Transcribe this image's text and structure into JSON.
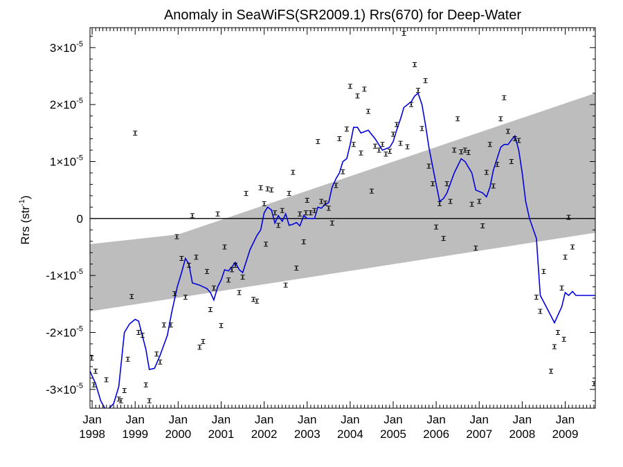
{
  "chart_data": {
    "type": "scatter",
    "title": "Anomaly in SeaWiFS(SR2009.1) Rrs(670) for Deep-Water",
    "ylabel": "Rrs (str",
    "ylabel_sup": "-1",
    "ylabel_tail": ")",
    "y_scale_exponent": -5,
    "ylim": [
      -3.33,
      3.35
    ],
    "xlim": [
      1997.95,
      2009.7
    ],
    "y_ticks": [
      {
        "value": 3,
        "mantissa": "3",
        "base": "×10",
        "exp": "-5"
      },
      {
        "value": 2,
        "mantissa": "2",
        "base": "×10",
        "exp": "-5"
      },
      {
        "value": 1,
        "mantissa": "1",
        "base": "×10",
        "exp": "-5"
      },
      {
        "value": 0,
        "mantissa": "0",
        "base": "",
        "exp": ""
      },
      {
        "value": -1,
        "mantissa": "-1",
        "base": "×10",
        "exp": "-5"
      },
      {
        "value": -2,
        "mantissa": "-2",
        "base": "×10",
        "exp": "-5"
      },
      {
        "value": -3,
        "mantissa": "-3",
        "base": "×10",
        "exp": "-5"
      }
    ],
    "x_ticks": [
      {
        "value": 1998,
        "month": "Jan",
        "year": "1998"
      },
      {
        "value": 1999,
        "month": "Jan",
        "year": "1999"
      },
      {
        "value": 2000,
        "month": "Jan",
        "year": "2000"
      },
      {
        "value": 2001,
        "month": "Jan",
        "year": "2001"
      },
      {
        "value": 2002,
        "month": "Jan",
        "year": "2002"
      },
      {
        "value": 2003,
        "month": "Jan",
        "year": "2003"
      },
      {
        "value": 2004,
        "month": "Jan",
        "year": "2004"
      },
      {
        "value": 2005,
        "month": "Jan",
        "year": "2005"
      },
      {
        "value": 2006,
        "month": "Jan",
        "year": "2006"
      },
      {
        "value": 2007,
        "month": "Jan",
        "year": "2007"
      },
      {
        "value": 2008,
        "month": "Jan",
        "year": "2008"
      },
      {
        "value": 2009,
        "month": "Jan",
        "year": "2009"
      }
    ],
    "trend_band": {
      "lower": [
        [
          1997.95,
          -1.63
        ],
        [
          2009.7,
          -0.25
        ]
      ],
      "upper": [
        [
          1997.95,
          -0.45
        ],
        [
          2000.0,
          -0.28
        ],
        [
          2009.7,
          2.2
        ]
      ]
    },
    "colors": {
      "smooth": "#0000dd",
      "band": "#bdbdbd",
      "points": "#000000"
    },
    "smooth_series": [
      [
        1997.95,
        -2.68
      ],
      [
        1998.08,
        -2.9
      ],
      [
        1998.2,
        -3.2
      ],
      [
        1998.33,
        -3.38
      ],
      [
        1998.5,
        -3.25
      ],
      [
        1998.62,
        -2.95
      ],
      [
        1998.75,
        -2.0
      ],
      [
        1998.87,
        -1.85
      ],
      [
        1999.0,
        -1.77
      ],
      [
        1999.08,
        -1.8
      ],
      [
        1999.25,
        -2.3
      ],
      [
        1999.33,
        -2.65
      ],
      [
        1999.45,
        -2.63
      ],
      [
        1999.58,
        -2.4
      ],
      [
        1999.75,
        -2.05
      ],
      [
        1999.85,
        -1.65
      ],
      [
        1999.98,
        -1.2
      ],
      [
        2000.08,
        -0.95
      ],
      [
        2000.17,
        -0.7
      ],
      [
        2000.25,
        -0.8
      ],
      [
        2000.33,
        -1.13
      ],
      [
        2000.5,
        -1.17
      ],
      [
        2000.67,
        -1.23
      ],
      [
        2000.75,
        -1.3
      ],
      [
        2000.83,
        -1.43
      ],
      [
        2000.92,
        -1.2
      ],
      [
        2001.0,
        -1.08
      ],
      [
        2001.08,
        -0.9
      ],
      [
        2001.17,
        -0.92
      ],
      [
        2001.25,
        -0.85
      ],
      [
        2001.33,
        -0.77
      ],
      [
        2001.42,
        -0.9
      ],
      [
        2001.5,
        -0.95
      ],
      [
        2001.67,
        -0.55
      ],
      [
        2001.83,
        -0.3
      ],
      [
        2001.92,
        -0.2
      ],
      [
        2002.0,
        0.1
      ],
      [
        2002.08,
        0.2
      ],
      [
        2002.17,
        0.15
      ],
      [
        2002.25,
        -0.08
      ],
      [
        2002.33,
        0.05
      ],
      [
        2002.42,
        -0.05
      ],
      [
        2002.5,
        0.08
      ],
      [
        2002.58,
        -0.12
      ],
      [
        2002.67,
        -0.1
      ],
      [
        2002.75,
        -0.07
      ],
      [
        2002.83,
        -0.13
      ],
      [
        2002.92,
        0.05
      ],
      [
        2003.0,
        0.0
      ],
      [
        2003.17,
        0.0
      ],
      [
        2003.25,
        0.2
      ],
      [
        2003.33,
        0.18
      ],
      [
        2003.42,
        0.25
      ],
      [
        2003.5,
        0.28
      ],
      [
        2003.58,
        0.55
      ],
      [
        2003.67,
        0.7
      ],
      [
        2003.75,
        0.8
      ],
      [
        2003.83,
        1.0
      ],
      [
        2003.92,
        1.05
      ],
      [
        2004.0,
        1.3
      ],
      [
        2004.08,
        1.6
      ],
      [
        2004.17,
        1.6
      ],
      [
        2004.25,
        1.5
      ],
      [
        2004.42,
        1.55
      ],
      [
        2004.58,
        1.4
      ],
      [
        2004.75,
        1.2
      ],
      [
        2004.92,
        1.25
      ],
      [
        2005.0,
        1.35
      ],
      [
        2005.08,
        1.55
      ],
      [
        2005.17,
        1.75
      ],
      [
        2005.25,
        1.95
      ],
      [
        2005.42,
        2.05
      ],
      [
        2005.5,
        2.15
      ],
      [
        2005.58,
        2.2
      ],
      [
        2005.67,
        2.0
      ],
      [
        2005.75,
        1.65
      ],
      [
        2005.83,
        1.25
      ],
      [
        2005.92,
        0.9
      ],
      [
        2006.0,
        0.6
      ],
      [
        2006.08,
        0.3
      ],
      [
        2006.17,
        0.35
      ],
      [
        2006.25,
        0.45
      ],
      [
        2006.42,
        0.8
      ],
      [
        2006.58,
        1.05
      ],
      [
        2006.67,
        1.0
      ],
      [
        2006.75,
        0.9
      ],
      [
        2006.83,
        0.8
      ],
      [
        2006.92,
        0.5
      ],
      [
        2007.08,
        0.45
      ],
      [
        2007.17,
        0.38
      ],
      [
        2007.25,
        0.55
      ],
      [
        2007.33,
        0.85
      ],
      [
        2007.5,
        1.25
      ],
      [
        2007.58,
        1.3
      ],
      [
        2007.67,
        1.3
      ],
      [
        2007.75,
        1.38
      ],
      [
        2007.83,
        1.45
      ],
      [
        2007.92,
        1.2
      ],
      [
        2008.0,
        0.8
      ],
      [
        2008.08,
        0.3
      ],
      [
        2008.17,
        0.0
      ],
      [
        2008.33,
        -0.35
      ],
      [
        2008.42,
        -1.35
      ],
      [
        2008.58,
        -1.58
      ],
      [
        2008.75,
        -1.83
      ],
      [
        2008.92,
        -1.55
      ],
      [
        2009.0,
        -1.3
      ],
      [
        2009.08,
        -1.35
      ],
      [
        2009.17,
        -1.28
      ],
      [
        2009.25,
        -1.35
      ],
      [
        2009.5,
        -1.35
      ],
      [
        2009.7,
        -1.35
      ]
    ],
    "points": [
      [
        1997.99,
        -2.45
      ],
      [
        1998.04,
        -2.92
      ],
      [
        1998.08,
        -2.68
      ],
      [
        1998.33,
        -2.83
      ],
      [
        1998.62,
        -3.17
      ],
      [
        1998.67,
        -3.2
      ],
      [
        1998.75,
        -3.02
      ],
      [
        1998.83,
        -2.47
      ],
      [
        1998.92,
        -1.37
      ],
      [
        1999.0,
        1.5
      ],
      [
        1999.08,
        -2.0
      ],
      [
        1999.17,
        -2.05
      ],
      [
        1999.25,
        -2.92
      ],
      [
        1999.33,
        -3.2
      ],
      [
        1999.5,
        -2.38
      ],
      [
        1999.58,
        -2.52
      ],
      [
        1999.67,
        -1.87
      ],
      [
        1999.83,
        -1.87
      ],
      [
        1999.92,
        -1.32
      ],
      [
        1999.97,
        -0.32
      ],
      [
        2000.08,
        -0.7
      ],
      [
        2000.17,
        -1.38
      ],
      [
        2000.25,
        -0.82
      ],
      [
        2000.33,
        0.05
      ],
      [
        2000.42,
        -0.68
      ],
      [
        2000.5,
        -2.26
      ],
      [
        2000.58,
        -2.16
      ],
      [
        2000.67,
        -0.93
      ],
      [
        2000.75,
        -1.6
      ],
      [
        2000.83,
        -1.22
      ],
      [
        2000.92,
        0.08
      ],
      [
        2001.0,
        -1.88
      ],
      [
        2001.08,
        -0.5
      ],
      [
        2001.17,
        -1.08
      ],
      [
        2001.25,
        -0.9
      ],
      [
        2001.33,
        -0.82
      ],
      [
        2001.42,
        -1.3
      ],
      [
        2001.5,
        -1.03
      ],
      [
        2001.58,
        0.44
      ],
      [
        2001.75,
        -1.42
      ],
      [
        2001.83,
        -1.45
      ],
      [
        2001.92,
        0.54
      ],
      [
        2002.0,
        0.26
      ],
      [
        2002.04,
        -0.45
      ],
      [
        2002.08,
        0.52
      ],
      [
        2002.17,
        0.5
      ],
      [
        2002.25,
        0.1
      ],
      [
        2002.33,
        -0.12
      ],
      [
        2002.42,
        0.14
      ],
      [
        2002.5,
        -1.17
      ],
      [
        2002.58,
        0.44
      ],
      [
        2002.67,
        0.81
      ],
      [
        2002.75,
        -0.87
      ],
      [
        2002.83,
        0.08
      ],
      [
        2002.92,
        -0.41
      ],
      [
        2002.97,
        0.1
      ],
      [
        2003.0,
        0.32
      ],
      [
        2003.08,
        0.1
      ],
      [
        2003.17,
        0.14
      ],
      [
        2003.25,
        1.35
      ],
      [
        2003.33,
        0.3
      ],
      [
        2003.42,
        0.27
      ],
      [
        2003.5,
        0.18
      ],
      [
        2003.58,
        -0.08
      ],
      [
        2003.67,
        0.58
      ],
      [
        2003.75,
        1.4
      ],
      [
        2003.83,
        0.82
      ],
      [
        2003.92,
        1.57
      ],
      [
        2004.0,
        2.32
      ],
      [
        2004.08,
        1.3
      ],
      [
        2004.17,
        2.15
      ],
      [
        2004.25,
        1.15
      ],
      [
        2004.33,
        2.27
      ],
      [
        2004.42,
        1.88
      ],
      [
        2004.5,
        0.48
      ],
      [
        2004.58,
        1.27
      ],
      [
        2004.67,
        1.2
      ],
      [
        2004.75,
        1.3
      ],
      [
        2004.83,
        1.13
      ],
      [
        2004.92,
        1.18
      ],
      [
        2005.0,
        1.48
      ],
      [
        2005.08,
        1.65
      ],
      [
        2005.17,
        1.32
      ],
      [
        2005.25,
        3.25
      ],
      [
        2005.33,
        1.26
      ],
      [
        2005.42,
        2.0
      ],
      [
        2005.5,
        2.7
      ],
      [
        2005.58,
        2.25
      ],
      [
        2005.67,
        1.58
      ],
      [
        2005.75,
        2.42
      ],
      [
        2005.83,
        0.92
      ],
      [
        2005.92,
        0.61
      ],
      [
        2006.0,
        -0.15
      ],
      [
        2006.08,
        0.26
      ],
      [
        2006.17,
        -0.35
      ],
      [
        2006.25,
        0.61
      ],
      [
        2006.33,
        0.3
      ],
      [
        2006.42,
        1.2
      ],
      [
        2006.5,
        1.75
      ],
      [
        2006.58,
        1.17
      ],
      [
        2006.67,
        1.2
      ],
      [
        2006.75,
        1.16
      ],
      [
        2006.83,
        0.25
      ],
      [
        2006.92,
        -0.52
      ],
      [
        2007.0,
        0.3
      ],
      [
        2007.08,
        -0.13
      ],
      [
        2007.17,
        0.81
      ],
      [
        2007.25,
        1.3
      ],
      [
        2007.33,
        0.57
      ],
      [
        2007.42,
        0.95
      ],
      [
        2007.5,
        1.75
      ],
      [
        2007.58,
        2.12
      ],
      [
        2007.67,
        1.53
      ],
      [
        2007.75,
        1.0
      ],
      [
        2007.83,
        1.4
      ],
      [
        2007.92,
        1.37
      ],
      [
        2008.33,
        -1.38
      ],
      [
        2008.42,
        -1.63
      ],
      [
        2008.5,
        -0.93
      ],
      [
        2008.67,
        -2.68
      ],
      [
        2008.75,
        -2.25
      ],
      [
        2008.83,
        -2.0
      ],
      [
        2008.92,
        -1.22
      ],
      [
        2008.97,
        -2.12
      ],
      [
        2009.0,
        -0.68
      ],
      [
        2009.08,
        0.02
      ],
      [
        2009.17,
        -0.5
      ],
      [
        2009.67,
        -2.9
      ]
    ]
  }
}
